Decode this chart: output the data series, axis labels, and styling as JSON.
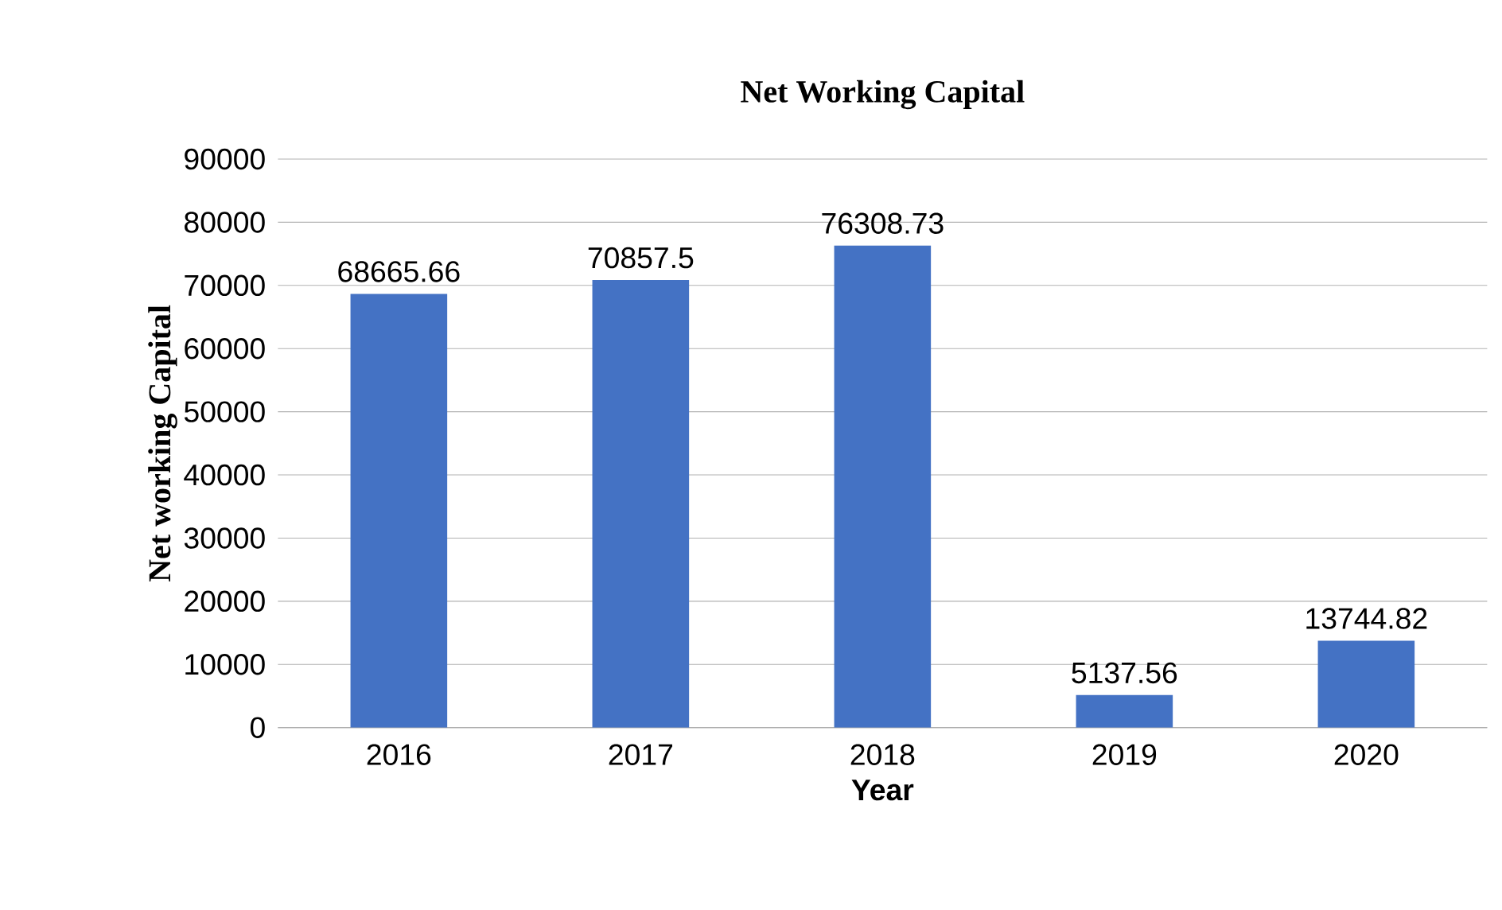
{
  "chart_data": {
    "type": "bar",
    "title": "Net Working Capital",
    "xlabel": "Year",
    "ylabel": "Net working Capital",
    "categories": [
      "2016",
      "2017",
      "2018",
      "2019",
      "2020"
    ],
    "values": [
      68665.66,
      70857.5,
      76308.73,
      5137.56,
      13744.82
    ],
    "color": "#4472c4",
    "data_labels": true,
    "grid": "y",
    "ylim": [
      0,
      90000
    ],
    "yticks": [
      0,
      10000,
      20000,
      30000,
      40000,
      50000,
      60000,
      70000,
      80000,
      90000
    ]
  }
}
